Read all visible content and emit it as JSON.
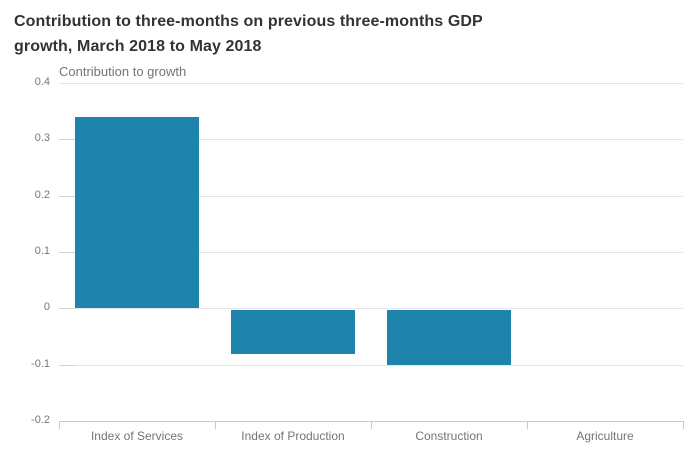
{
  "title": {
    "line1": "Contribution to three-months on previous three-months GDP",
    "line2": "growth, March 2018 to May 2018"
  },
  "chart_data": {
    "type": "bar",
    "title": "Contribution to three-months on previous three-months GDP growth, March 2018 to May 2018",
    "subtitle": "Contribution to growth",
    "categories": [
      "Index of Services",
      "Index of Production",
      "Construction",
      "Agriculture"
    ],
    "values": [
      0.34,
      -0.08,
      -0.1,
      0
    ],
    "ylim": [
      -0.2,
      0.4
    ],
    "ytick_labels": [
      "0.4",
      "0.3",
      "0.2",
      "0.1",
      "0",
      "-0.1",
      "-0.2"
    ],
    "ytick_values": [
      0.4,
      0.3,
      0.2,
      0.1,
      0,
      -0.1,
      -0.2
    ],
    "grid": true,
    "legend": "none",
    "bar_color": "#1e84ac"
  },
  "colors": {
    "bar": "#1e84ac",
    "title_text": "#333333",
    "axis_label_text": "#6f777b",
    "gridline": "#e6e6e6",
    "axis_line": "#c9c9c9"
  }
}
